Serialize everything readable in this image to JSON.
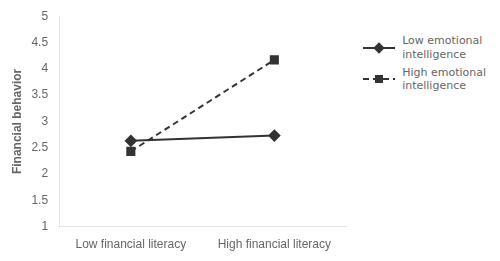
{
  "chart_data": {
    "type": "line",
    "categories": [
      "Low financial literacy",
      "High financial literacy"
    ],
    "series": [
      {
        "name": "Low emotional\nintelligence",
        "color": "#333333",
        "values": [
          2.63,
          2.73
        ],
        "marker": "diamond",
        "line_style": "solid"
      },
      {
        "name": "High emotional\nintelligence",
        "color": "#333333",
        "values": [
          2.43,
          4.17
        ],
        "marker": "square",
        "line_style": "dashed"
      }
    ],
    "ylabel": "Financial behavior",
    "ylim": [
      1,
      5
    ],
    "yticks": [
      1,
      1.5,
      2,
      2.5,
      3,
      3.5,
      4,
      4.5,
      5
    ],
    "grid": false,
    "legend": "right"
  }
}
